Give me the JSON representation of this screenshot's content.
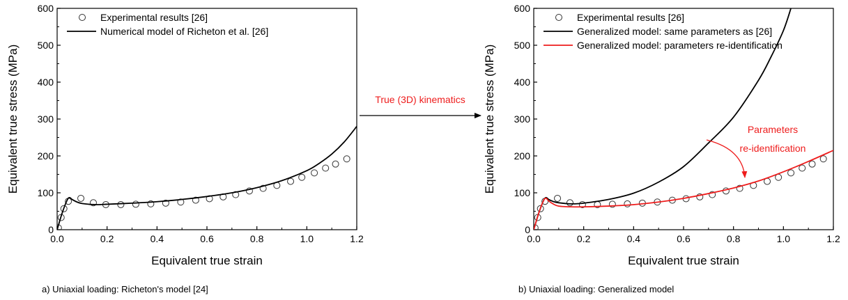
{
  "arrow_label": "True (3D) kinematics",
  "colors": {
    "experimental": "#333333",
    "richeton": "#000000",
    "same_params": "#000000",
    "reidentified": "#ee1c1c",
    "annotation": "#ee1c1c"
  },
  "chart_data": [
    {
      "type": "line",
      "caption": "a) Uniaxial loading: Richeton's model [24]",
      "xlabel": "Equivalent true strain",
      "ylabel": "Equivalent true stress (MPa)",
      "xlim": [
        0,
        1.2
      ],
      "ylim": [
        0,
        600
      ],
      "xticks": [
        "0.0",
        "0.2",
        "0.4",
        "0.6",
        "0.8",
        "1.0",
        "1.2"
      ],
      "yticks": [
        "0",
        "100",
        "200",
        "300",
        "400",
        "500",
        "600"
      ],
      "legend_position": "top-left",
      "grid": false,
      "series": [
        {
          "name": "Experimental results [26]",
          "style": "circles",
          "color": "#333333",
          "x": [
            0.005,
            0.016,
            0.027,
            0.045,
            0.095,
            0.145,
            0.195,
            0.255,
            0.315,
            0.375,
            0.435,
            0.495,
            0.555,
            0.61,
            0.665,
            0.715,
            0.77,
            0.825,
            0.88,
            0.935,
            0.98,
            1.03,
            1.075,
            1.115,
            1.16
          ],
          "y": [
            5,
            33,
            57,
            77,
            85,
            73,
            68,
            68,
            69,
            70,
            72,
            75,
            80,
            84,
            89,
            95,
            105,
            112,
            120,
            131,
            142,
            154,
            167,
            178,
            192
          ]
        },
        {
          "name": "Numerical model of Richeton et al. [26]",
          "style": "line",
          "color": "#000000",
          "x": [
            0,
            0.02,
            0.04,
            0.05,
            0.06,
            0.08,
            0.1,
            0.15,
            0.2,
            0.3,
            0.4,
            0.5,
            0.6,
            0.7,
            0.8,
            0.9,
            1.0,
            1.05,
            1.1,
            1.15,
            1.2
          ],
          "y": [
            0,
            45,
            80,
            87,
            82,
            75,
            71,
            68,
            69,
            72,
            76,
            82,
            90,
            100,
            114,
            133,
            160,
            180,
            205,
            238,
            280
          ]
        }
      ]
    },
    {
      "type": "line",
      "caption": "b) Uniaxial loading: Generalized model",
      "xlabel": "Equivalent true strain",
      "ylabel": "Equivalent true stress (MPa)",
      "xlim": [
        0,
        1.2
      ],
      "ylim": [
        0,
        600
      ],
      "xticks": [
        "0.0",
        "0.2",
        "0.4",
        "0.6",
        "0.8",
        "1.0",
        "1.2"
      ],
      "yticks": [
        "0",
        "100",
        "200",
        "300",
        "400",
        "500",
        "600"
      ],
      "legend_position": "top-left",
      "grid": false,
      "annotation": {
        "text_line1": "Parameters",
        "text_line2": "re-identification"
      },
      "series": [
        {
          "name": "Experimental results [26]",
          "style": "circles",
          "color": "#333333",
          "x": [
            0.005,
            0.016,
            0.027,
            0.045,
            0.095,
            0.145,
            0.195,
            0.255,
            0.315,
            0.375,
            0.435,
            0.495,
            0.555,
            0.61,
            0.665,
            0.715,
            0.77,
            0.825,
            0.88,
            0.935,
            0.98,
            1.03,
            1.075,
            1.115,
            1.16
          ],
          "y": [
            5,
            33,
            57,
            77,
            85,
            73,
            68,
            68,
            69,
            70,
            72,
            75,
            80,
            84,
            89,
            95,
            105,
            112,
            120,
            131,
            142,
            154,
            167,
            178,
            192
          ]
        },
        {
          "name": "Generalized model: same parameters as [26]",
          "style": "line",
          "color": "#000000",
          "x": [
            0,
            0.02,
            0.04,
            0.05,
            0.06,
            0.08,
            0.1,
            0.15,
            0.2,
            0.3,
            0.4,
            0.5,
            0.6,
            0.7,
            0.8,
            0.9,
            0.95,
            1.0,
            1.03
          ],
          "y": [
            0,
            45,
            80,
            87,
            82,
            76,
            73,
            70,
            72,
            82,
            99,
            129,
            171,
            235,
            305,
            405,
            468,
            540,
            600
          ]
        },
        {
          "name": "Generalized model: parameters re-identification",
          "style": "line",
          "color": "#ee1c1c",
          "x": [
            0,
            0.02,
            0.04,
            0.05,
            0.06,
            0.08,
            0.1,
            0.15,
            0.2,
            0.3,
            0.4,
            0.5,
            0.6,
            0.7,
            0.8,
            0.9,
            1.0,
            1.1,
            1.2
          ],
          "y": [
            0,
            45,
            80,
            85,
            78,
            69,
            64,
            62,
            62,
            64,
            68,
            75,
            85,
            98,
            113,
            132,
            157,
            185,
            215
          ]
        }
      ]
    }
  ]
}
